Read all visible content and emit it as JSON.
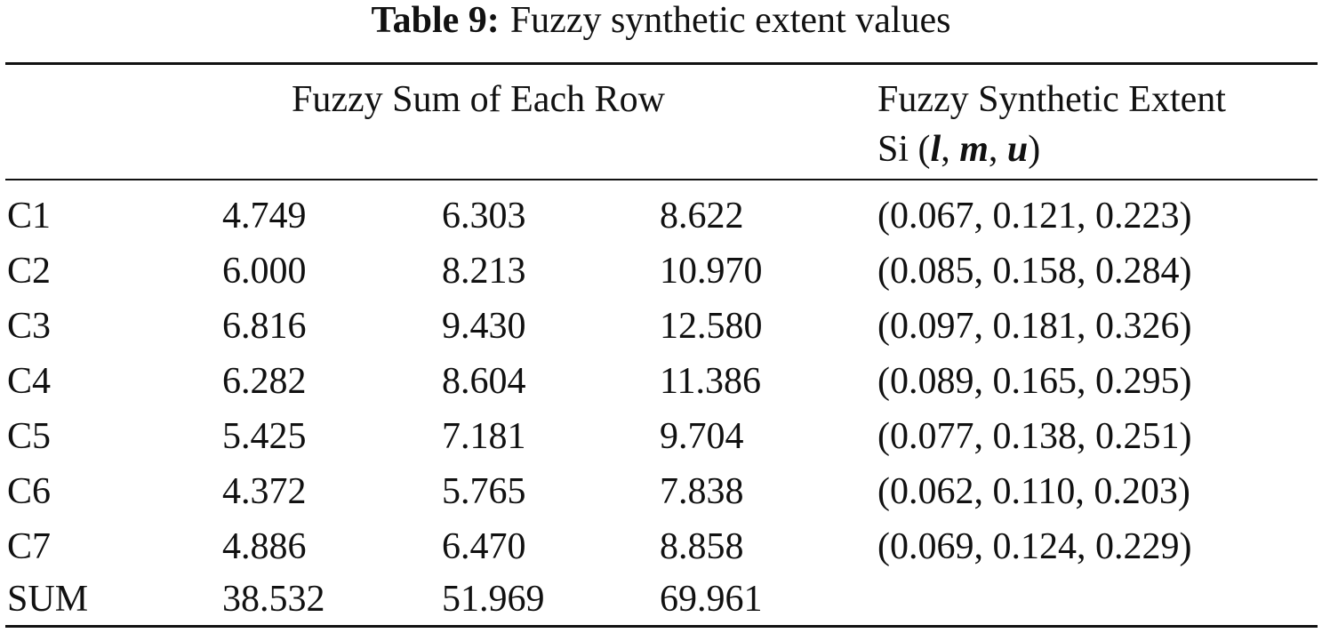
{
  "caption": {
    "label": "Table 9:",
    "text": "Fuzzy synthetic extent values"
  },
  "header": {
    "group1": "Fuzzy Sum of Each Row",
    "group2_line1": "Fuzzy Synthetic Extent",
    "group2_prefix": "Si (",
    "var_l": "l",
    "var_m": "m",
    "var_u": "u",
    "sep": ", ",
    "group2_suffix": ")"
  },
  "rows": [
    {
      "name": "C1",
      "l": "4.749",
      "m": "6.303",
      "u": "8.622",
      "extent": "(0.067, 0.121, 0.223)"
    },
    {
      "name": "C2",
      "l": "6.000",
      "m": "8.213",
      "u": "10.970",
      "extent": "(0.085, 0.158, 0.284)"
    },
    {
      "name": "C3",
      "l": "6.816",
      "m": "9.430",
      "u": "12.580",
      "extent": "(0.097, 0.181, 0.326)"
    },
    {
      "name": "C4",
      "l": "6.282",
      "m": "8.604",
      "u": "11.386",
      "extent": "(0.089, 0.165, 0.295)"
    },
    {
      "name": "C5",
      "l": "5.425",
      "m": "7.181",
      "u": "9.704",
      "extent": "(0.077, 0.138, 0.251)"
    },
    {
      "name": "C6",
      "l": "4.372",
      "m": "5.765",
      "u": "7.838",
      "extent": "(0.062, 0.110, 0.203)"
    },
    {
      "name": "C7",
      "l": "4.886",
      "m": "6.470",
      "u": "8.858",
      "extent": "(0.069, 0.124, 0.229)"
    },
    {
      "name": "SUM",
      "l": "38.532",
      "m": "51.969",
      "u": "69.961",
      "extent": ""
    }
  ]
}
